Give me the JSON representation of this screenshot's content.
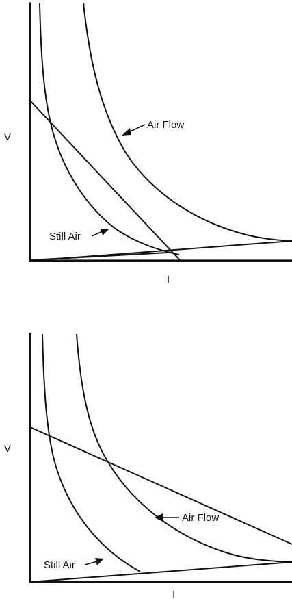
{
  "figure": {
    "panels": [
      {
        "id": "top",
        "y_axis_label": "V",
        "x_axis_label": "I",
        "annotations": {
          "air_flow": "Air Flow",
          "still_air": "Still Air"
        }
      },
      {
        "id": "bottom",
        "y_axis_label": "V",
        "x_axis_label": "I",
        "annotations": {
          "air_flow": "Air Flow",
          "still_air": "Still Air"
        }
      }
    ]
  }
}
